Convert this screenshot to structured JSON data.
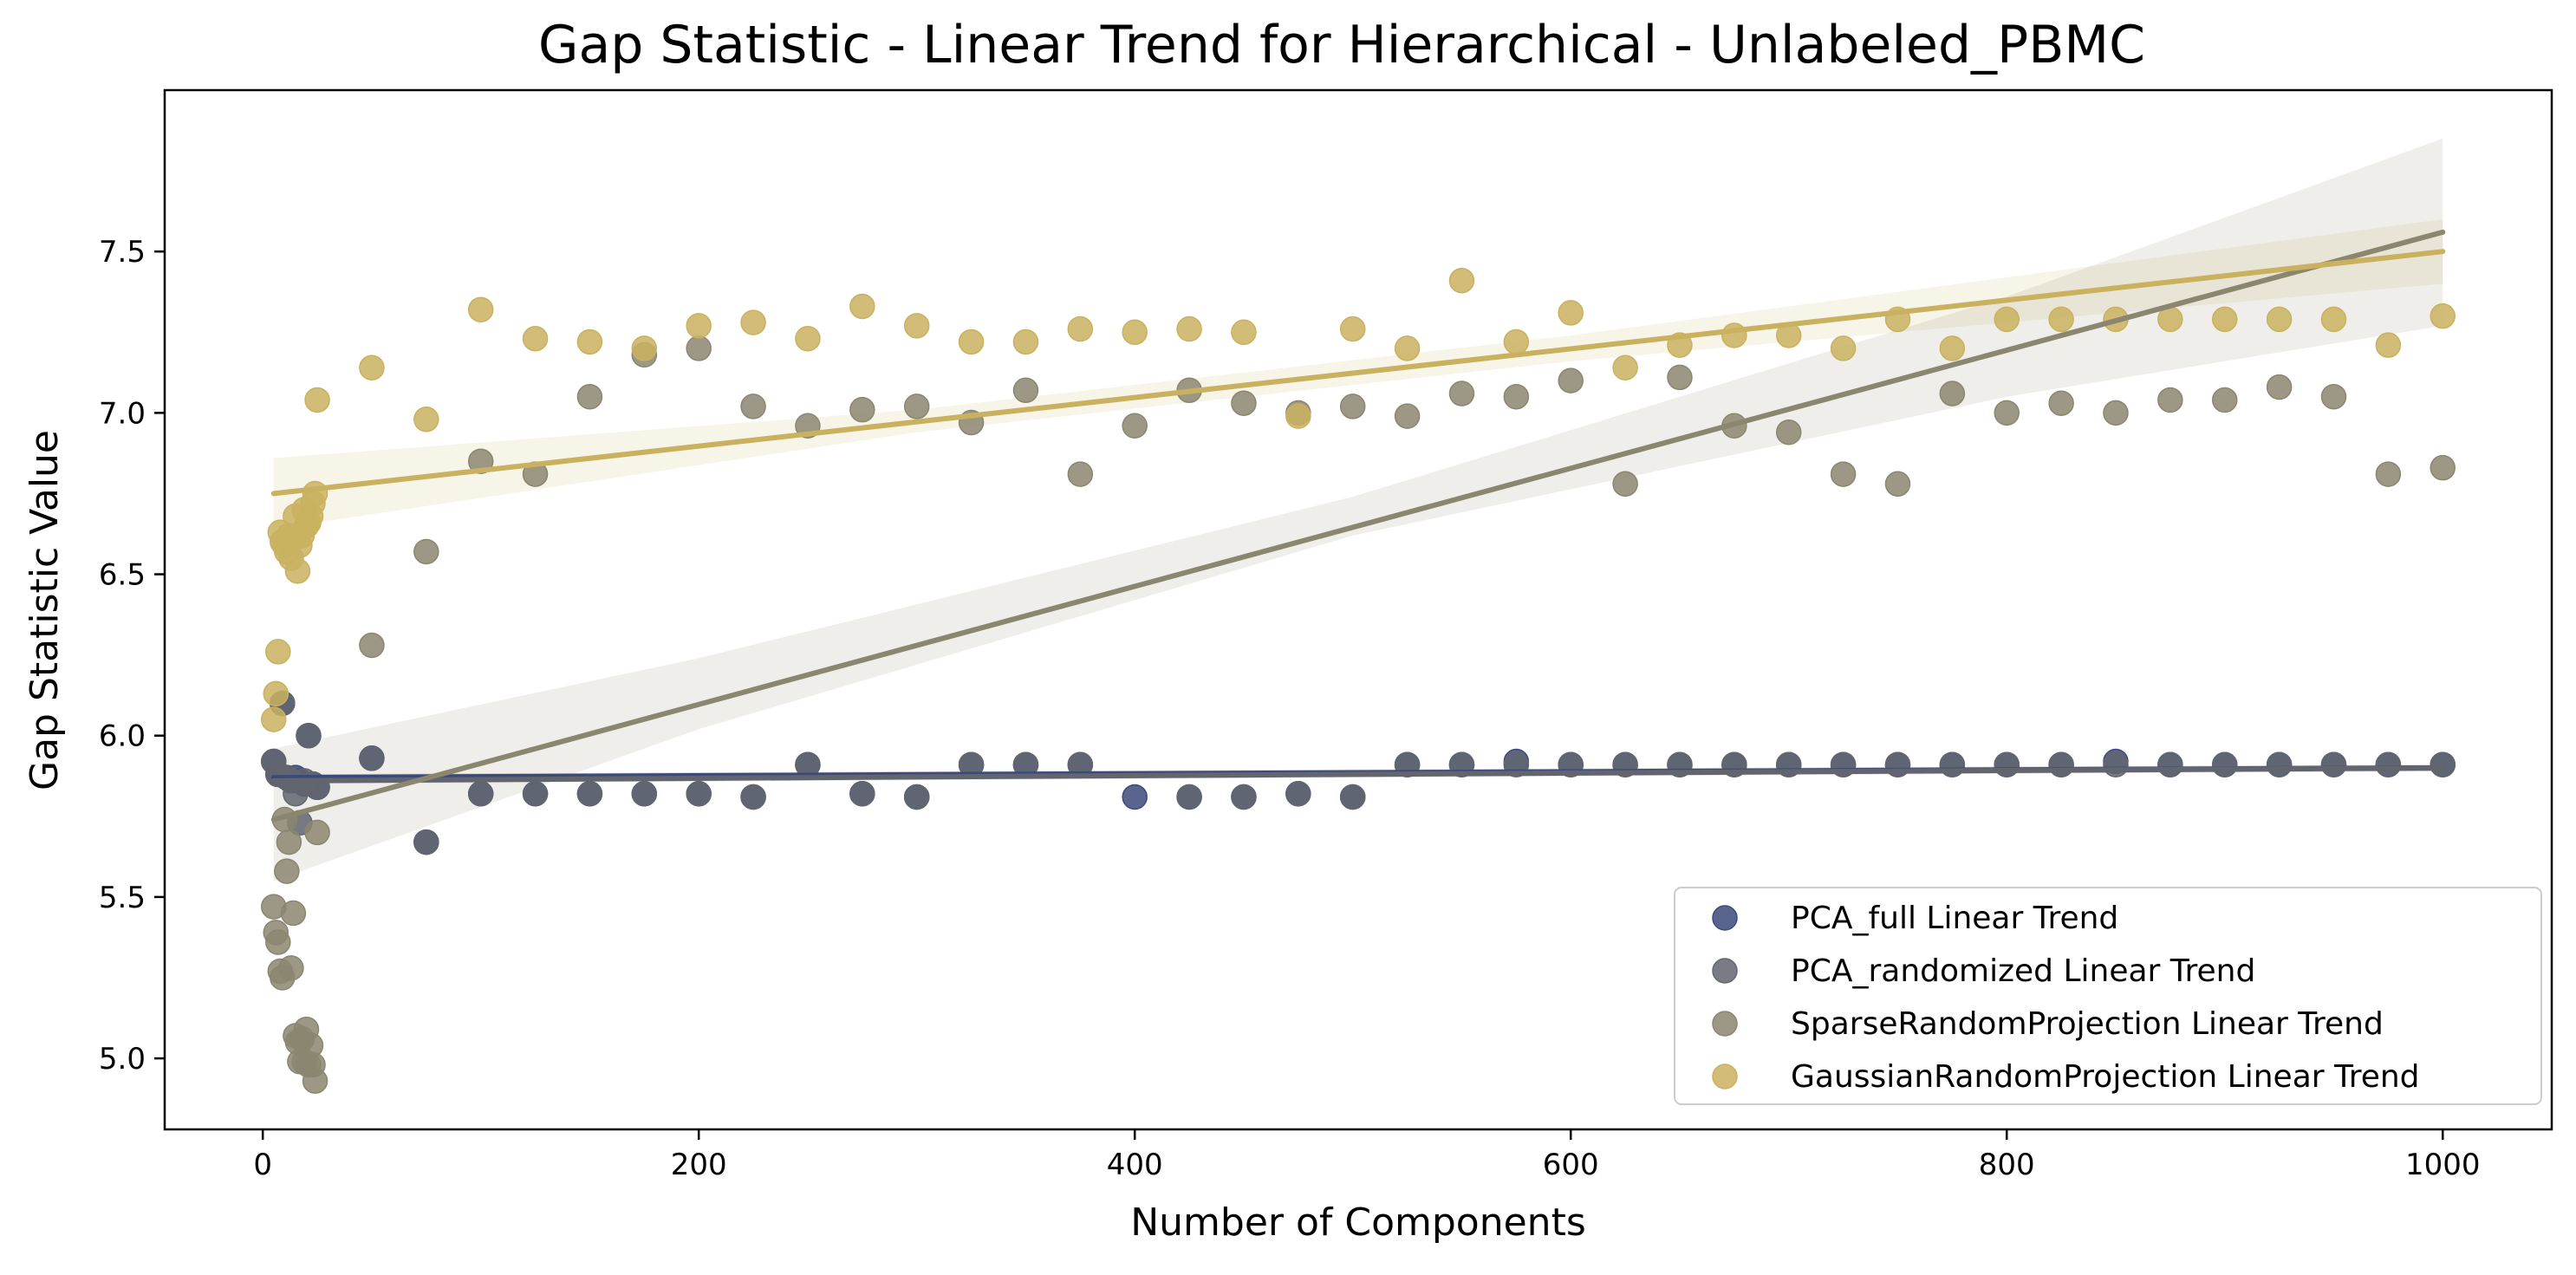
{
  "chart_data": {
    "type": "scatter",
    "title": "Gap Statistic - Linear Trend for Hierarchical - Unlabeled_PBMC",
    "xlabel": "Number of Components",
    "ylabel": "Gap Statistic Value",
    "xlim": [
      -45,
      1050
    ],
    "ylim": [
      4.78,
      8.0
    ],
    "xticks": [
      0,
      200,
      400,
      600,
      800,
      1000
    ],
    "xtick_labels": [
      "0",
      "200",
      "400",
      "600",
      "800",
      "1000"
    ],
    "yticks": [
      5.0,
      5.5,
      6.0,
      6.5,
      7.0,
      7.5
    ],
    "ytick_labels": [
      "5.0",
      "5.5",
      "6.0",
      "6.5",
      "7.0",
      "7.5"
    ],
    "grid": false,
    "legend_position": "lower-right",
    "series": [
      {
        "name": "PCA_full Linear Trend",
        "color": "#3c4a7a",
        "trend": [
          [
            5,
            5.87
          ],
          [
            1000,
            5.9
          ]
        ],
        "band": [
          [
            5,
            5.86,
            5.88
          ],
          [
            1000,
            5.89,
            5.91
          ]
        ],
        "points": [
          [
            5,
            5.92
          ],
          [
            7,
            5.88
          ],
          [
            9,
            6.1
          ],
          [
            11,
            5.87
          ],
          [
            13,
            5.86
          ],
          [
            15,
            5.87
          ],
          [
            17,
            5.86
          ],
          [
            19,
            5.85
          ],
          [
            21,
            6.0
          ],
          [
            23,
            5.85
          ],
          [
            25,
            5.84
          ],
          [
            50,
            5.93
          ],
          [
            75,
            5.67
          ],
          [
            100,
            5.82
          ],
          [
            125,
            5.82
          ],
          [
            150,
            5.82
          ],
          [
            175,
            5.82
          ],
          [
            200,
            5.82
          ],
          [
            225,
            5.81
          ],
          [
            250,
            5.91
          ],
          [
            275,
            5.82
          ],
          [
            300,
            5.81
          ],
          [
            325,
            5.91
          ],
          [
            350,
            5.91
          ],
          [
            375,
            5.91
          ],
          [
            400,
            5.81
          ],
          [
            425,
            5.81
          ],
          [
            450,
            5.81
          ],
          [
            475,
            5.82
          ],
          [
            500,
            5.81
          ],
          [
            525,
            5.91
          ],
          [
            550,
            5.91
          ],
          [
            575,
            5.92
          ],
          [
            600,
            5.91
          ],
          [
            625,
            5.91
          ],
          [
            650,
            5.91
          ],
          [
            675,
            5.91
          ],
          [
            700,
            5.91
          ],
          [
            725,
            5.91
          ],
          [
            750,
            5.91
          ],
          [
            775,
            5.91
          ],
          [
            800,
            5.91
          ],
          [
            825,
            5.91
          ],
          [
            850,
            5.92
          ],
          [
            875,
            5.91
          ],
          [
            900,
            5.91
          ],
          [
            925,
            5.91
          ],
          [
            950,
            5.91
          ],
          [
            975,
            5.91
          ],
          [
            1000,
            5.91
          ]
        ]
      },
      {
        "name": "PCA_randomized Linear Trend",
        "color": "#62656e",
        "trend": [
          [
            5,
            5.86
          ],
          [
            1000,
            5.9
          ]
        ],
        "band": [
          [
            5,
            5.85,
            5.88
          ],
          [
            1000,
            5.89,
            5.91
          ]
        ],
        "points": [
          [
            5,
            5.92
          ],
          [
            7,
            5.88
          ],
          [
            9,
            6.1
          ],
          [
            11,
            5.87
          ],
          [
            13,
            5.86
          ],
          [
            15,
            5.82
          ],
          [
            17,
            5.73
          ],
          [
            19,
            5.86
          ],
          [
            21,
            6.0
          ],
          [
            23,
            5.85
          ],
          [
            25,
            5.84
          ],
          [
            50,
            5.93
          ],
          [
            75,
            5.67
          ],
          [
            100,
            5.82
          ],
          [
            125,
            5.82
          ],
          [
            150,
            5.82
          ],
          [
            175,
            5.82
          ],
          [
            200,
            5.82
          ],
          [
            225,
            5.81
          ],
          [
            250,
            5.91
          ],
          [
            275,
            5.82
          ],
          [
            300,
            5.81
          ],
          [
            325,
            5.91
          ],
          [
            350,
            5.91
          ],
          [
            375,
            5.91
          ],
          [
            425,
            5.81
          ],
          [
            450,
            5.81
          ],
          [
            475,
            5.82
          ],
          [
            500,
            5.81
          ],
          [
            525,
            5.91
          ],
          [
            550,
            5.91
          ],
          [
            575,
            5.91
          ],
          [
            600,
            5.91
          ],
          [
            625,
            5.91
          ],
          [
            650,
            5.91
          ],
          [
            675,
            5.91
          ],
          [
            700,
            5.91
          ],
          [
            725,
            5.91
          ],
          [
            750,
            5.91
          ],
          [
            775,
            5.91
          ],
          [
            800,
            5.91
          ],
          [
            825,
            5.91
          ],
          [
            850,
            5.91
          ],
          [
            875,
            5.91
          ],
          [
            900,
            5.91
          ],
          [
            925,
            5.91
          ],
          [
            950,
            5.91
          ],
          [
            975,
            5.91
          ],
          [
            1000,
            5.91
          ]
        ]
      },
      {
        "name": "SparseRandomProjection Linear Trend",
        "color": "#8b8670",
        "trend": [
          [
            5,
            5.74
          ],
          [
            1000,
            7.56
          ]
        ],
        "band": [
          [
            5,
            5.55,
            5.96
          ],
          [
            200,
            6.02,
            6.24
          ],
          [
            500,
            6.62,
            6.74
          ],
          [
            800,
            7.05,
            7.36
          ],
          [
            1000,
            7.27,
            7.85
          ]
        ],
        "points": [
          [
            5,
            5.47
          ],
          [
            6,
            5.39
          ],
          [
            7,
            5.36
          ],
          [
            8,
            5.27
          ],
          [
            9,
            5.25
          ],
          [
            10,
            5.74
          ],
          [
            11,
            5.58
          ],
          [
            12,
            5.67
          ],
          [
            13,
            5.28
          ],
          [
            14,
            5.45
          ],
          [
            15,
            5.07
          ],
          [
            16,
            5.05
          ],
          [
            17,
            4.99
          ],
          [
            18,
            5.06
          ],
          [
            19,
            4.99
          ],
          [
            20,
            5.09
          ],
          [
            21,
            4.98
          ],
          [
            22,
            5.04
          ],
          [
            23,
            4.98
          ],
          [
            24,
            4.93
          ],
          [
            25,
            5.7
          ],
          [
            50,
            6.28
          ],
          [
            75,
            6.57
          ],
          [
            100,
            6.85
          ],
          [
            125,
            6.81
          ],
          [
            150,
            7.05
          ],
          [
            175,
            7.18
          ],
          [
            200,
            7.2
          ],
          [
            225,
            7.02
          ],
          [
            250,
            6.96
          ],
          [
            275,
            7.01
          ],
          [
            300,
            7.02
          ],
          [
            325,
            6.97
          ],
          [
            350,
            7.07
          ],
          [
            375,
            6.81
          ],
          [
            400,
            6.96
          ],
          [
            425,
            7.07
          ],
          [
            450,
            7.03
          ],
          [
            475,
            7.0
          ],
          [
            500,
            7.02
          ],
          [
            525,
            6.99
          ],
          [
            550,
            7.06
          ],
          [
            575,
            7.05
          ],
          [
            600,
            7.1
          ],
          [
            625,
            6.78
          ],
          [
            650,
            7.11
          ],
          [
            675,
            6.96
          ],
          [
            700,
            6.94
          ],
          [
            725,
            6.81
          ],
          [
            750,
            6.78
          ],
          [
            775,
            7.06
          ],
          [
            800,
            7.0
          ],
          [
            825,
            7.03
          ],
          [
            850,
            7.0
          ],
          [
            875,
            7.04
          ],
          [
            900,
            7.04
          ],
          [
            925,
            7.08
          ],
          [
            950,
            7.05
          ],
          [
            975,
            6.81
          ],
          [
            1000,
            6.83
          ]
        ]
      },
      {
        "name": "GaussianRandomProjection Linear Trend",
        "color": "#c9b15f",
        "trend": [
          [
            5,
            6.75
          ],
          [
            1000,
            7.5
          ]
        ],
        "band": [
          [
            5,
            6.64,
            6.86
          ],
          [
            300,
            6.94,
            7.01
          ],
          [
            600,
            7.16,
            7.24
          ],
          [
            1000,
            7.4,
            7.6
          ]
        ],
        "points": [
          [
            5,
            6.05
          ],
          [
            6,
            6.13
          ],
          [
            7,
            6.26
          ],
          [
            8,
            6.63
          ],
          [
            9,
            6.6
          ],
          [
            10,
            6.59
          ],
          [
            11,
            6.57
          ],
          [
            12,
            6.62
          ],
          [
            13,
            6.55
          ],
          [
            14,
            6.61
          ],
          [
            15,
            6.68
          ],
          [
            16,
            6.51
          ],
          [
            17,
            6.59
          ],
          [
            18,
            6.62
          ],
          [
            19,
            6.7
          ],
          [
            20,
            6.65
          ],
          [
            21,
            6.66
          ],
          [
            22,
            6.68
          ],
          [
            23,
            6.72
          ],
          [
            24,
            6.75
          ],
          [
            25,
            7.04
          ],
          [
            50,
            7.14
          ],
          [
            75,
            6.98
          ],
          [
            100,
            7.32
          ],
          [
            125,
            7.23
          ],
          [
            150,
            7.22
          ],
          [
            175,
            7.2
          ],
          [
            200,
            7.27
          ],
          [
            225,
            7.28
          ],
          [
            250,
            7.23
          ],
          [
            275,
            7.33
          ],
          [
            300,
            7.27
          ],
          [
            325,
            7.22
          ],
          [
            350,
            7.22
          ],
          [
            375,
            7.26
          ],
          [
            400,
            7.25
          ],
          [
            425,
            7.26
          ],
          [
            450,
            7.25
          ],
          [
            475,
            6.99
          ],
          [
            500,
            7.26
          ],
          [
            525,
            7.2
          ],
          [
            550,
            7.41
          ],
          [
            575,
            7.22
          ],
          [
            600,
            7.31
          ],
          [
            625,
            7.14
          ],
          [
            650,
            7.21
          ],
          [
            675,
            7.24
          ],
          [
            700,
            7.24
          ],
          [
            725,
            7.2
          ],
          [
            750,
            7.29
          ],
          [
            775,
            7.2
          ],
          [
            800,
            7.29
          ],
          [
            825,
            7.29
          ],
          [
            850,
            7.29
          ],
          [
            875,
            7.29
          ],
          [
            900,
            7.29
          ],
          [
            925,
            7.29
          ],
          [
            950,
            7.29
          ],
          [
            975,
            7.21
          ],
          [
            1000,
            7.3
          ]
        ]
      }
    ]
  }
}
